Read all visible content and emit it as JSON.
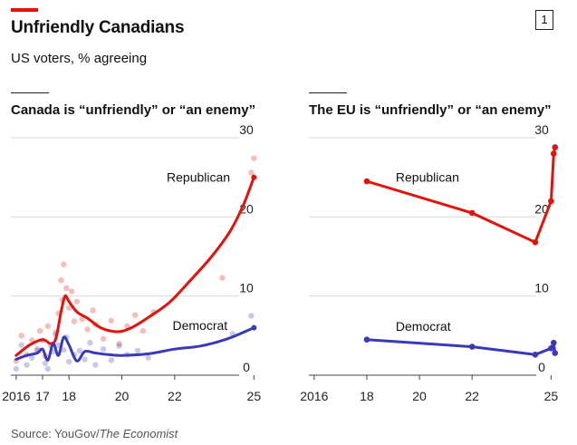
{
  "header": {
    "title": "Unfriendly Canadians",
    "subtitle": "US voters, % agreeing",
    "badge": "1"
  },
  "source": {
    "prefix": "Source: YouGov/",
    "italic": "The Economist"
  },
  "colors": {
    "republican": "#e3120b",
    "democrat": "#3a3ab8",
    "grid": "#d9d9d9",
    "accent": "#e3120b"
  },
  "chart_data": [
    {
      "type": "line",
      "title": "Canada is “unfriendly” or “an enemy”",
      "x_ticks": [
        2016,
        2017,
        2018,
        2020,
        2022,
        2025
      ],
      "x_tick_labels": [
        "2016",
        "17",
        "18",
        "20",
        "22",
        "25"
      ],
      "xlim": [
        2015.8,
        2025.4
      ],
      "ylim": [
        0,
        30
      ],
      "y_ticks": [
        0,
        10,
        20,
        30
      ],
      "series": [
        {
          "name": "Republican",
          "color": "republican",
          "x": [
            2016.0,
            2016.5,
            2017.0,
            2017.3,
            2017.5,
            2017.7,
            2017.85,
            2018.0,
            2018.3,
            2018.7,
            2019.2,
            2019.8,
            2020.3,
            2021.0,
            2021.8,
            2022.6,
            2023.4,
            2024.1,
            2024.6,
            2025.0
          ],
          "values": [
            2.5,
            3.8,
            4.5,
            4.0,
            4.6,
            8.0,
            10.0,
            9.3,
            8.0,
            7.2,
            6.0,
            5.5,
            5.9,
            7.3,
            9.2,
            12.0,
            15.0,
            18.2,
            21.5,
            25.0
          ]
        },
        {
          "name": "Democrat",
          "color": "democrat",
          "x": [
            2016.0,
            2016.4,
            2016.8,
            2017.0,
            2017.2,
            2017.4,
            2017.6,
            2017.8,
            2018.0,
            2018.3,
            2018.6,
            2019.0,
            2019.5,
            2020.0,
            2021.0,
            2022.0,
            2023.0,
            2024.0,
            2025.0
          ],
          "values": [
            2.0,
            2.5,
            2.8,
            3.3,
            1.9,
            4.0,
            2.5,
            4.8,
            3.8,
            1.8,
            3.0,
            2.8,
            2.6,
            2.5,
            2.7,
            3.3,
            3.7,
            4.6,
            6.0
          ]
        }
      ],
      "scatter": [
        {
          "color": "republican",
          "points": [
            [
              2016.0,
              1.8
            ],
            [
              2016.2,
              5.0
            ],
            [
              2016.4,
              2.6
            ],
            [
              2016.6,
              4.4
            ],
            [
              2016.8,
              3.1
            ],
            [
              2016.9,
              5.6
            ],
            [
              2017.1,
              2.4
            ],
            [
              2017.2,
              6.2
            ],
            [
              2017.3,
              3.8
            ],
            [
              2017.5,
              5.4
            ],
            [
              2017.6,
              7.8
            ],
            [
              2017.7,
              12.0
            ],
            [
              2017.75,
              9.5
            ],
            [
              2017.8,
              14.0
            ],
            [
              2017.9,
              11.0
            ],
            [
              2018.0,
              8.5
            ],
            [
              2018.1,
              10.6
            ],
            [
              2018.2,
              6.8
            ],
            [
              2018.3,
              9.3
            ],
            [
              2018.5,
              7.1
            ],
            [
              2018.7,
              5.8
            ],
            [
              2018.9,
              8.2
            ],
            [
              2019.0,
              6.4
            ],
            [
              2019.3,
              4.6
            ],
            [
              2019.6,
              6.9
            ],
            [
              2019.9,
              4.0
            ],
            [
              2020.2,
              6.2
            ],
            [
              2020.5,
              7.6
            ],
            [
              2020.8,
              5.6
            ],
            [
              2021.2,
              8.0
            ],
            [
              2023.8,
              12.3
            ],
            [
              2024.9,
              25.6
            ],
            [
              2025.0,
              27.4
            ]
          ]
        },
        {
          "color": "democrat",
          "points": [
            [
              2016.0,
              0.8
            ],
            [
              2016.2,
              3.8
            ],
            [
              2016.4,
              1.3
            ],
            [
              2016.6,
              2.2
            ],
            [
              2016.8,
              3.3
            ],
            [
              2017.0,
              4.4
            ],
            [
              2017.1,
              1.5
            ],
            [
              2017.2,
              0.8
            ],
            [
              2017.4,
              3.0
            ],
            [
              2017.5,
              5.1
            ],
            [
              2017.6,
              3.8
            ],
            [
              2017.8,
              3.2
            ],
            [
              2017.9,
              4.8
            ],
            [
              2018.0,
              1.7
            ],
            [
              2018.2,
              2.6
            ],
            [
              2018.4,
              3.1
            ],
            [
              2018.6,
              2.0
            ],
            [
              2018.8,
              4.1
            ],
            [
              2019.0,
              1.3
            ],
            [
              2019.3,
              3.3
            ],
            [
              2019.6,
              1.9
            ],
            [
              2019.9,
              3.7
            ],
            [
              2020.2,
              2.6
            ],
            [
              2020.6,
              3.1
            ],
            [
              2021.0,
              2.2
            ],
            [
              2024.2,
              5.2
            ],
            [
              2024.9,
              7.5
            ]
          ]
        }
      ],
      "annotations": [
        {
          "text": "Republican",
          "x": 2024.1,
          "y": 25.0,
          "anchor": "end"
        },
        {
          "text": "Democrat",
          "x": 2024.0,
          "y": 6.3,
          "anchor": "end"
        }
      ]
    },
    {
      "type": "line",
      "title": "The EU is “unfriendly” or “an enemy”",
      "x_ticks": [
        2016,
        2018,
        2020,
        2022,
        2025
      ],
      "x_tick_labels": [
        "2016",
        "18",
        "20",
        "22",
        "25"
      ],
      "xlim": [
        2015.8,
        2025.4
      ],
      "ylim": [
        0,
        30
      ],
      "y_ticks": [
        0,
        10,
        20,
        30
      ],
      "series": [
        {
          "name": "Republican",
          "color": "republican",
          "x": [
            2018.0,
            2022.0,
            2024.4,
            2025.0,
            2025.1,
            2025.15
          ],
          "values": [
            24.5,
            20.5,
            16.8,
            22.0,
            28.0,
            28.8
          ]
        },
        {
          "name": "Democrat",
          "color": "democrat",
          "x": [
            2018.0,
            2022.0,
            2024.4,
            2025.0,
            2025.1,
            2025.15
          ],
          "values": [
            4.5,
            3.6,
            2.6,
            3.4,
            4.1,
            2.8
          ]
        }
      ],
      "annotations": [
        {
          "text": "Republican",
          "x": 2019.1,
          "y": 25.0,
          "anchor": "start"
        },
        {
          "text": "Democrat",
          "x": 2019.1,
          "y": 6.2,
          "anchor": "start"
        }
      ]
    }
  ]
}
